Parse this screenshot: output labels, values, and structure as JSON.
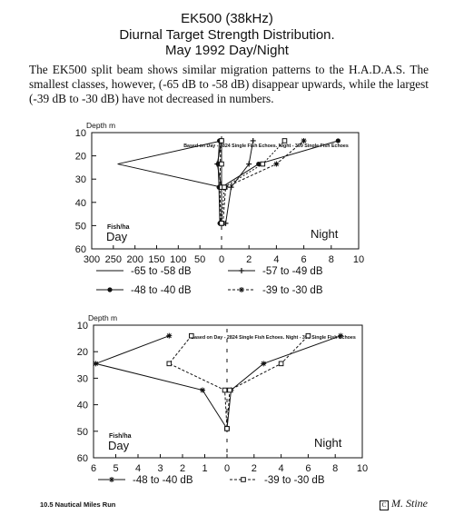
{
  "header": {
    "title": "EK500 (38kHz)",
    "subtitle": "Diurnal Target Strength Distribution.",
    "date": "May 1992 Day/Night",
    "paragraph": "The EK500 split beam shows similar migration patterns to the H.A.D.A.S.  The smallest classes, however, (-65 dB to -58 dB) disappear upwards, while the largest (-39 dB to -30 dB) have not decreased in numbers."
  },
  "footer": {
    "text": "10.5 Nautical Miles Run",
    "signature": "M. Stine"
  },
  "chart_data": [
    {
      "type": "line",
      "caption": "Based on Day - 2824 Single Fish Echoes.  Night - 399 Single Fish Echoes",
      "ylabel": "Depth m",
      "xlabel": "Fish/ha",
      "left_label": "Day",
      "right_label": "Night",
      "yticks": [
        10,
        20,
        30,
        40,
        50,
        60
      ],
      "ylim": [
        10,
        60
      ],
      "xticks": [
        "300",
        "250",
        "200",
        "150",
        "100",
        "50",
        "0",
        "2",
        "4",
        "6",
        "8",
        "10"
      ],
      "depths": [
        13.5,
        23.5,
        33.5,
        49
      ],
      "series": [
        {
          "name": "-65 to -58 dB",
          "marker": "none",
          "dash": "none",
          "day": [
            0,
            240,
            0,
            0
          ],
          "night": [
            0,
            0,
            0,
            0
          ]
        },
        {
          "name": "-57 to -49 dB",
          "marker": "plus",
          "dash": "none",
          "day": [
            0,
            10,
            0,
            0
          ],
          "night": [
            2.3,
            2.0,
            0.7,
            0.3
          ]
        },
        {
          "name": "-48 to -40 dB",
          "marker": "dot",
          "dash": "none",
          "day": [
            5,
            8,
            6,
            4
          ],
          "night": [
            8.5,
            2.7,
            0,
            0
          ]
        },
        {
          "name": "-39 to -30 dB",
          "marker": "star",
          "dash": "3 2",
          "day": [
            2,
            3,
            4,
            2
          ],
          "night": [
            6.0,
            4.0,
            0.3,
            0.1
          ]
        },
        {
          "name": "",
          "marker": "square",
          "dash": "2 2",
          "day": [
            0,
            0,
            0,
            0
          ],
          "night": [
            4.6,
            3.0,
            0.2,
            0
          ]
        }
      ]
    },
    {
      "type": "line",
      "caption": "Based on Day - 2824 Single Fish Echoes.  Night - 399 Single Fish Echoes",
      "ylabel": "Depth m",
      "xlabel": "Fish/ha",
      "left_label": "Day",
      "right_label": "Night",
      "yticks": [
        10,
        20,
        30,
        40,
        50,
        60
      ],
      "ylim": [
        10,
        60
      ],
      "xticks": [
        "6",
        "5",
        "4",
        "3",
        "2",
        "1",
        "0",
        "2",
        "4",
        "6",
        "8",
        "10"
      ],
      "depths": [
        14,
        24.5,
        34.5,
        49
      ],
      "series": [
        {
          "name": "-48 to -40 dB",
          "marker": "star",
          "dash": "none",
          "day": [
            2.6,
            5.9,
            1.1,
            0
          ],
          "night": [
            8.4,
            2.7,
            0.3,
            0
          ]
        },
        {
          "name": "-39 to -30 dB",
          "marker": "square",
          "dash": "3 2",
          "day": [
            1.6,
            2.6,
            0.1,
            0
          ],
          "night": [
            6.0,
            4.0,
            0.2,
            0
          ]
        }
      ]
    }
  ]
}
